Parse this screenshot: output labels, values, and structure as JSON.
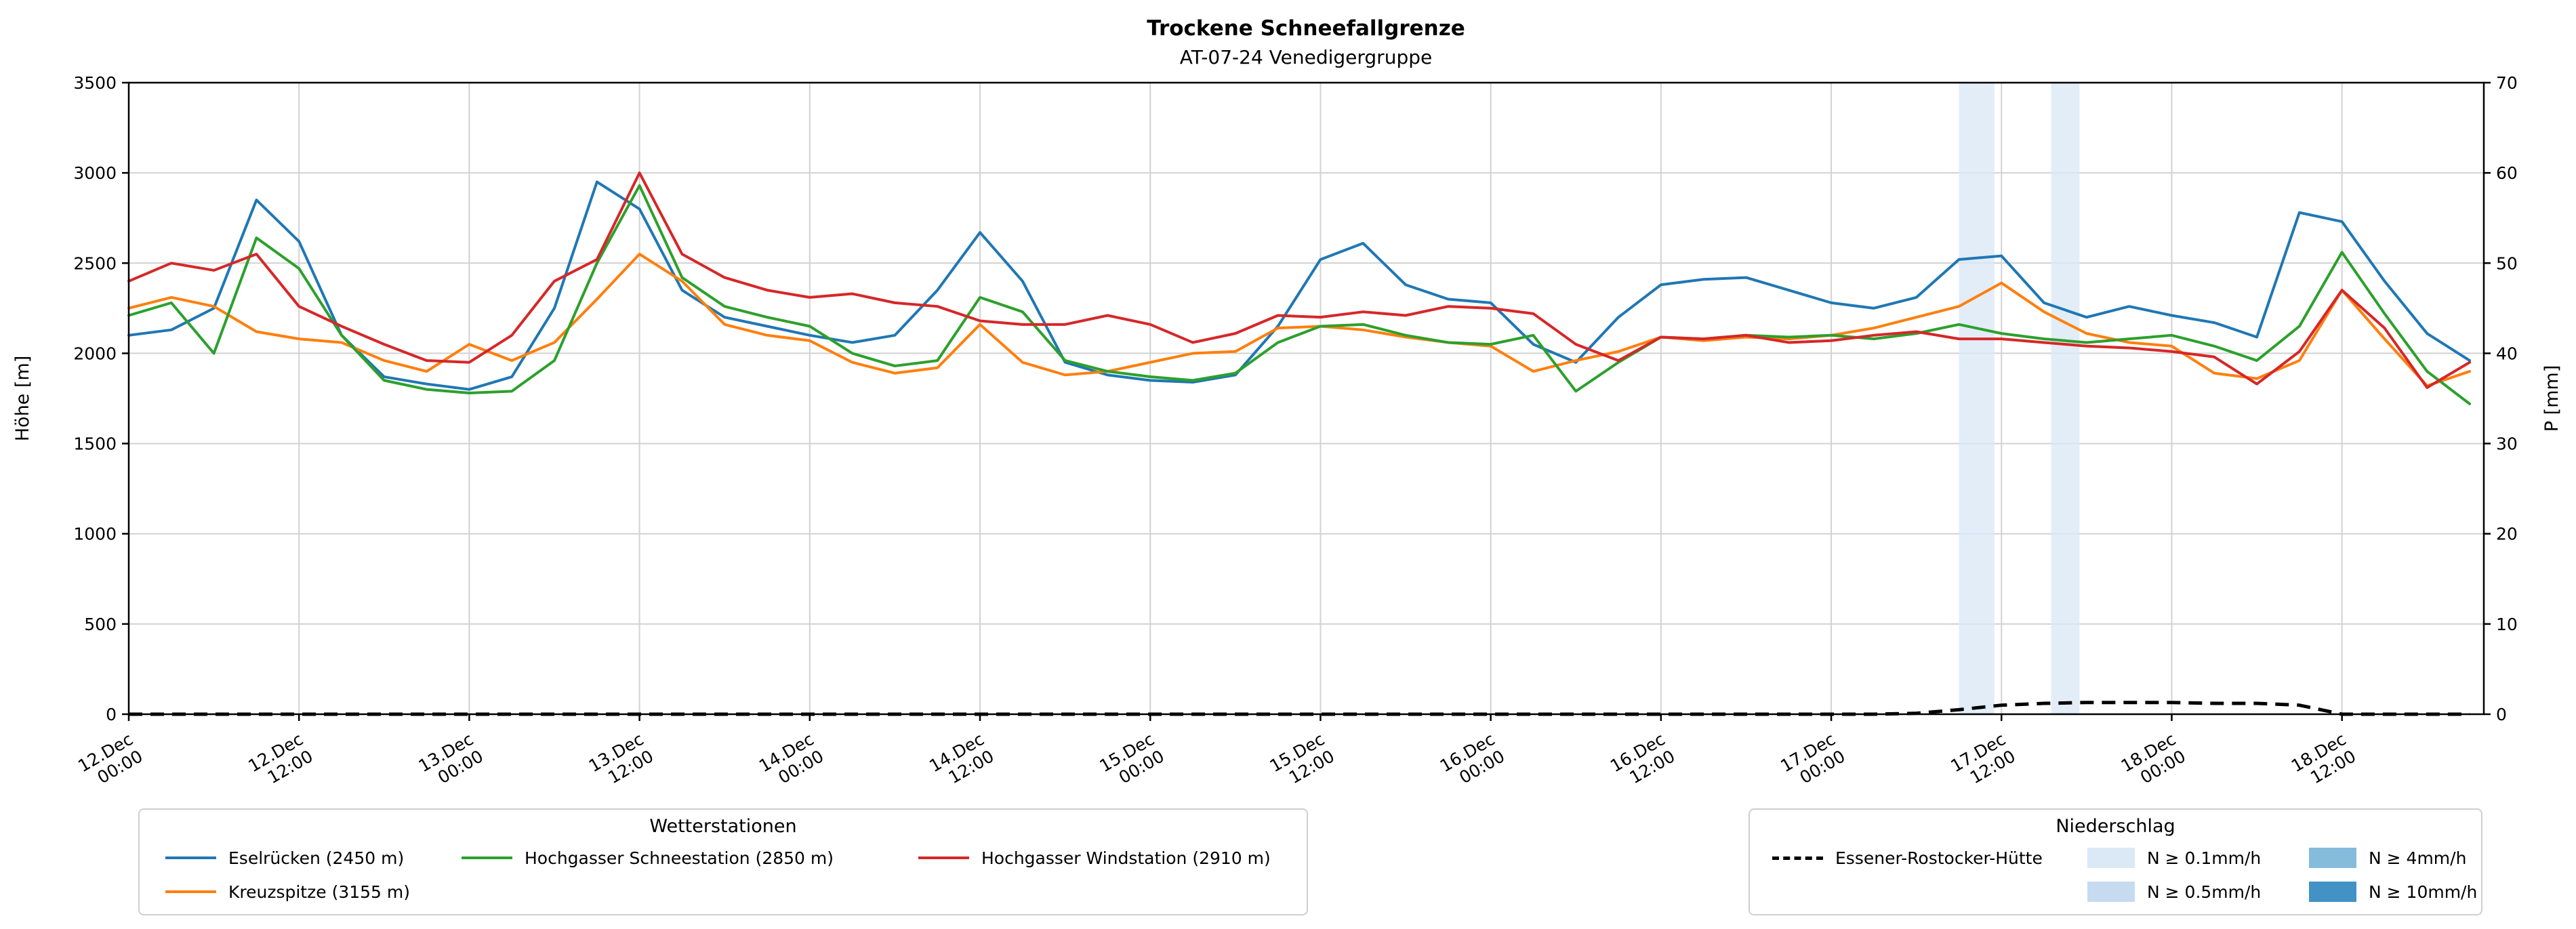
{
  "title": "Trockene Schneefallgrenze",
  "subtitle": "AT-07-24 Venedigergruppe",
  "chart_data": {
    "type": "line",
    "title": "Trockene Schneefallgrenze",
    "subtitle": "AT-07-24 Venedigergruppe",
    "ylabel_left": "Höhe [m]",
    "ylabel_right": "P [mm]",
    "ylim_left": [
      0,
      3500
    ],
    "ylim_right": [
      0,
      70
    ],
    "yticks_left": [
      0,
      500,
      1000,
      1500,
      2000,
      2500,
      3000,
      3500
    ],
    "yticks_right": [
      0,
      10,
      20,
      30,
      40,
      50,
      60,
      70
    ],
    "grid": true,
    "x_unit": "hours since 12.Dec 00:00",
    "x_end_h": 166,
    "x_hours": [
      0,
      3,
      6,
      9,
      12,
      15,
      18,
      21,
      24,
      27,
      30,
      33,
      36,
      39,
      42,
      45,
      48,
      51,
      54,
      57,
      60,
      63,
      66,
      69,
      72,
      75,
      78,
      81,
      84,
      87,
      90,
      93,
      96,
      99,
      102,
      105,
      108,
      111,
      114,
      117,
      120,
      123,
      126,
      129,
      132,
      135,
      138,
      141,
      144,
      147,
      150,
      153,
      156,
      159,
      162,
      165
    ],
    "x_ticks": [
      {
        "h": 0,
        "label": "12.Dec 00:00"
      },
      {
        "h": 12,
        "label": "12.Dec 12:00"
      },
      {
        "h": 24,
        "label": "13.Dec 00:00"
      },
      {
        "h": 36,
        "label": "13.Dec 12:00"
      },
      {
        "h": 48,
        "label": "14.Dec 00:00"
      },
      {
        "h": 60,
        "label": "14.Dec 12:00"
      },
      {
        "h": 72,
        "label": "15.Dec 00:00"
      },
      {
        "h": 84,
        "label": "15.Dec 12:00"
      },
      {
        "h": 96,
        "label": "16.Dec 00:00"
      },
      {
        "h": 108,
        "label": "16.Dec 12:00"
      },
      {
        "h": 120,
        "label": "17.Dec 00:00"
      },
      {
        "h": 132,
        "label": "17.Dec 12:00"
      },
      {
        "h": 144,
        "label": "18.Dec 00:00"
      },
      {
        "h": 156,
        "label": "18.Dec 12:00"
      }
    ],
    "series": [
      {
        "id": "eselruecken",
        "name": "Eselrücken (2450 m)",
        "color": "#1f77b4",
        "axis": "left",
        "values": [
          2100,
          2130,
          2250,
          2850,
          2620,
          2100,
          1870,
          1830,
          1800,
          1870,
          2250,
          2950,
          2800,
          2350,
          2200,
          2150,
          2100,
          2060,
          2100,
          2350,
          2670,
          2400,
          1950,
          1880,
          1850,
          1840,
          1880,
          2150,
          2520,
          2610,
          2380,
          2300,
          2280,
          2050,
          1950,
          2200,
          2380,
          2410,
          2420,
          2350,
          2280,
          2250,
          2310,
          2520,
          2540,
          2280,
          2200,
          2260,
          2210,
          2170,
          2090,
          2780,
          2730,
          2400,
          2110,
          1960
        ]
      },
      {
        "id": "kreuzspitze",
        "name": "Kreuzspitze (3155 m)",
        "color": "#ff7f0e",
        "axis": "left",
        "values": [
          2250,
          2310,
          2260,
          2120,
          2080,
          2060,
          1960,
          1900,
          2050,
          1960,
          2060,
          2300,
          2550,
          2400,
          2160,
          2100,
          2070,
          1950,
          1890,
          1920,
          2160,
          1950,
          1880,
          1900,
          1950,
          2000,
          2010,
          2140,
          2150,
          2130,
          2090,
          2060,
          2040,
          1900,
          1960,
          2010,
          2090,
          2070,
          2090,
          2080,
          2100,
          2140,
          2200,
          2260,
          2390,
          2230,
          2110,
          2060,
          2040,
          1890,
          1860,
          1960,
          2350,
          2080,
          1820,
          1900
        ]
      },
      {
        "id": "schneestation",
        "name": "Hochgasser Schneestation (2850 m)",
        "color": "#2ca02c",
        "axis": "left",
        "values": [
          2210,
          2280,
          2000,
          2640,
          2470,
          2100,
          1850,
          1800,
          1780,
          1790,
          1960,
          2500,
          2930,
          2420,
          2260,
          2200,
          2150,
          2000,
          1930,
          1960,
          2310,
          2230,
          1960,
          1900,
          1870,
          1850,
          1890,
          2060,
          2150,
          2160,
          2100,
          2060,
          2050,
          2100,
          1790,
          1950,
          2090,
          2080,
          2100,
          2090,
          2100,
          2080,
          2110,
          2160,
          2110,
          2080,
          2060,
          2080,
          2100,
          2040,
          1960,
          2150,
          2560,
          2220,
          1900,
          1720
        ]
      },
      {
        "id": "windstation",
        "name": "Hochgasser Windstation (2910 m)",
        "color": "#d62728",
        "axis": "left",
        "values": [
          2400,
          2500,
          2460,
          2550,
          2260,
          2150,
          2050,
          1960,
          1950,
          2100,
          2400,
          2520,
          3000,
          2550,
          2420,
          2350,
          2310,
          2330,
          2280,
          2260,
          2180,
          2160,
          2160,
          2210,
          2160,
          2060,
          2110,
          2210,
          2200,
          2230,
          2210,
          2260,
          2250,
          2220,
          2050,
          1960,
          2090,
          2080,
          2100,
          2060,
          2070,
          2100,
          2120,
          2080,
          2080,
          2060,
          2040,
          2030,
          2010,
          1980,
          1830,
          2010,
          2350,
          2140,
          1810,
          1950
        ]
      }
    ],
    "precip_series": {
      "id": "essener-rostocker-huette",
      "name": "Essener-Rostocker-Hütte",
      "color": "#000000",
      "style": "dashed",
      "axis": "right",
      "values": [
        0,
        0,
        0,
        0,
        0,
        0,
        0,
        0,
        0,
        0,
        0,
        0,
        0,
        0,
        0,
        0,
        0,
        0,
        0,
        0,
        0,
        0,
        0,
        0,
        0,
        0,
        0,
        0,
        0,
        0,
        0,
        0,
        0,
        0,
        0,
        0,
        0,
        0,
        0,
        0,
        0,
        0,
        0.1,
        0.5,
        1.0,
        1.2,
        1.3,
        1.3,
        1.3,
        1.2,
        1.2,
        1.0,
        0,
        0,
        0,
        0
      ]
    },
    "precip_bands": [
      {
        "start_h": 129,
        "end_h": 131.5,
        "level": "N ≥ 0.1mm/h",
        "color": "#dbe9f6"
      },
      {
        "start_h": 135.5,
        "end_h": 137.5,
        "level": "N ≥ 0.1mm/h",
        "color": "#dbe9f6"
      }
    ]
  },
  "legends": {
    "stations": {
      "title": "Wetterstationen",
      "items": [
        {
          "id": "eselruecken",
          "label": "Eselrücken (2450 m)",
          "color": "#1f77b4"
        },
        {
          "id": "kreuzspitze",
          "label": "Kreuzspitze (3155 m)",
          "color": "#ff7f0e"
        },
        {
          "id": "schneestation",
          "label": "Hochgasser Schneestation (2850 m)",
          "color": "#2ca02c"
        },
        {
          "id": "windstation",
          "label": "Hochgasser Windstation (2910 m)",
          "color": "#d62728"
        }
      ]
    },
    "precip": {
      "title": "Niederschlag",
      "line_item": {
        "id": "essener-rostocker-huette",
        "label": "Essener-Rostocker-Hütte",
        "color": "#000000"
      },
      "patches": [
        {
          "id": "n-0-1",
          "label": "N ≥ 0.1mm/h",
          "color": "#dbe9f6"
        },
        {
          "id": "n-0-5",
          "label": "N ≥ 0.5mm/h",
          "color": "#c6dbef"
        },
        {
          "id": "n-4",
          "label": "N ≥ 4mm/h",
          "color": "#85bcdb"
        },
        {
          "id": "n-10",
          "label": "N ≥ 10mm/h",
          "color": "#4292c6"
        }
      ]
    }
  }
}
